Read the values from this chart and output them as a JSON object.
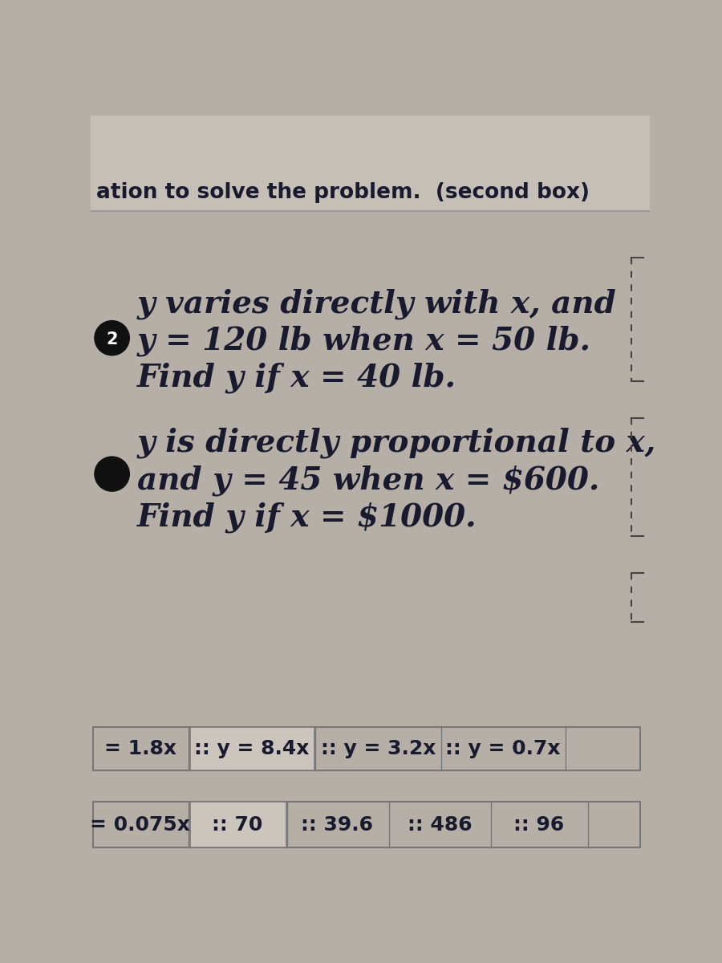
{
  "bg_color": "#b5afa8",
  "white_area_color": "#e8e2db",
  "header_line_color": "#aaaaaa",
  "header_text": "ation to solve the problem.  (second box)",
  "header_fontsize": 19,
  "header_text_color": "#1a1a2e",
  "problem1_bullet": "2",
  "problem1_line1": "y varies directly with x, and",
  "problem1_line2": "y = 120 lb when x = 50 lb.",
  "problem1_line3": "Find y if x = 40 lb.",
  "problem2_line1": "y is directly proportional to x,",
  "problem2_line2": "and y = 45 when x = $600.",
  "problem2_line3": "Find y if x = $1000.",
  "row1_items": [
    "= 1.8x",
    ":: y = 8.4x",
    ":: y = 3.2x",
    ":: y = 0.7x"
  ],
  "row2_items": [
    "= 0.075x",
    ":: 70",
    ":: 39.6",
    ":: 486",
    ":: 96"
  ],
  "main_text_color": "#1a1a2e",
  "main_fontsize": 28,
  "answer_fontsize": 18,
  "answer_border": "#777777",
  "answer_text_color": "#1a1a2e",
  "bullet_bg": "#111111",
  "bullet_color": "#ffffff",
  "right_bracket_color": "#444444",
  "noise_alpha": 0.04
}
